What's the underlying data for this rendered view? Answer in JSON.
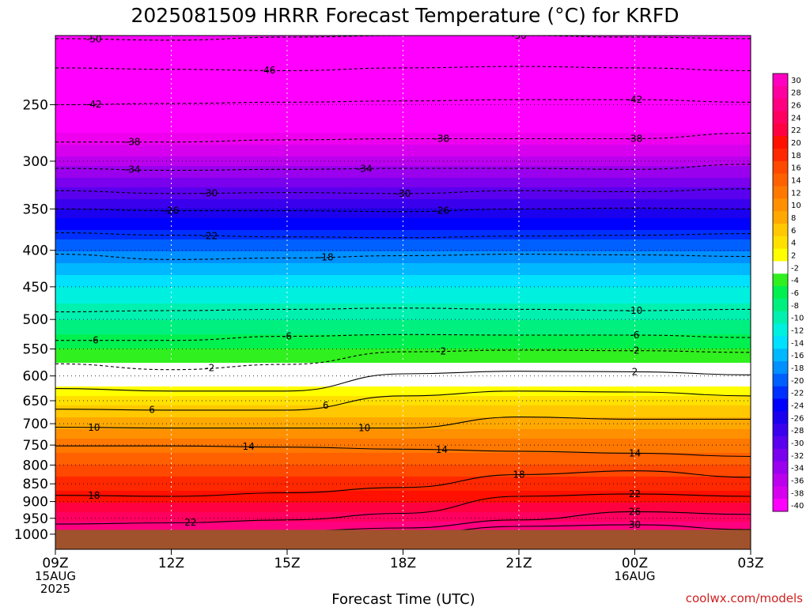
{
  "chart_data": {
    "type": "heatmap",
    "title": "2025081509 HRRR Forecast Temperature (°C) for KRFD",
    "xlabel": "Forecast Time (UTC)",
    "ylabel": "",
    "credit": "coolwx.com/models",
    "x_ticks": [
      {
        "hour": 0,
        "label": "09Z",
        "sub1": "15AUG",
        "sub2": "2025"
      },
      {
        "hour": 3,
        "label": "12Z",
        "sub1": "",
        "sub2": ""
      },
      {
        "hour": 6,
        "label": "15Z",
        "sub1": "",
        "sub2": ""
      },
      {
        "hour": 9,
        "label": "18Z",
        "sub1": "",
        "sub2": ""
      },
      {
        "hour": 12,
        "label": "21Z",
        "sub1": "",
        "sub2": ""
      },
      {
        "hour": 15,
        "label": "00Z",
        "sub1": "16AUG",
        "sub2": ""
      },
      {
        "hour": 18,
        "label": "03Z",
        "sub1": "",
        "sub2": ""
      }
    ],
    "y_ticks": [
      {
        "p": 250,
        "label": "250"
      },
      {
        "p": 300,
        "label": "300"
      },
      {
        "p": 350,
        "label": "350"
      },
      {
        "p": 400,
        "label": "400"
      },
      {
        "p": 450,
        "label": "450"
      },
      {
        "p": 500,
        "label": "500"
      },
      {
        "p": 550,
        "label": "550"
      },
      {
        "p": 600,
        "label": "600"
      },
      {
        "p": 650,
        "label": "650"
      },
      {
        "p": 700,
        "label": "700"
      },
      {
        "p": 750,
        "label": "750"
      },
      {
        "p": 800,
        "label": "800"
      },
      {
        "p": 850,
        "label": "850"
      },
      {
        "p": 900,
        "label": "900"
      },
      {
        "p": 950,
        "label": "950"
      },
      {
        "p": 1000,
        "label": "1000"
      }
    ],
    "x_range_hours": [
      0,
      18
    ],
    "y_range_hpa": [
      200,
      1050
    ],
    "y_scale": "log",
    "ground_pressure_hpa": 986,
    "ground_color": "#a0522d",
    "colorbar": {
      "levels": [
        -40,
        -38,
        -36,
        -34,
        -32,
        -30,
        -28,
        -26,
        -24,
        -22,
        -20,
        -18,
        -16,
        -14,
        -12,
        -10,
        -8,
        -6,
        -4,
        -2,
        2,
        4,
        6,
        8,
        10,
        12,
        14,
        16,
        18,
        20,
        22,
        24,
        26,
        28,
        30
      ],
      "labels": [
        "30",
        "28",
        "26",
        "24",
        "22",
        "20",
        "18",
        "16",
        "14",
        "12",
        "10",
        "8",
        "6",
        "4",
        "2",
        "-2",
        "-4",
        "-6",
        "-8",
        "-10",
        "-12",
        "-14",
        "-16",
        "-18",
        "-20",
        "-22",
        "-24",
        "-26",
        "-28",
        "-30",
        "-32",
        "-34",
        "-36",
        "-38",
        "-40"
      ]
    },
    "profile": [
      {
        "p": 200,
        "t": -55
      },
      {
        "p": 250,
        "t": -45
      },
      {
        "p": 300,
        "t": -35
      },
      {
        "p": 350,
        "t": -26
      },
      {
        "p": 400,
        "t": -18
      },
      {
        "p": 450,
        "t": -12
      },
      {
        "p": 500,
        "t": -8
      },
      {
        "p": 550,
        "t": -4
      },
      {
        "p": 600,
        "t": 0
      },
      {
        "p": 650,
        "t": 5
      },
      {
        "p": 700,
        "t": 9
      },
      {
        "p": 750,
        "t": 13
      },
      {
        "p": 800,
        "t": 16
      },
      {
        "p": 850,
        "t": 19
      },
      {
        "p": 900,
        "t": 22
      },
      {
        "p": 950,
        "t": 25
      },
      {
        "p": 1000,
        "t": 29
      }
    ],
    "contours": [
      {
        "value": -50,
        "label": "-50",
        "style": "dashed",
        "p": [
          202,
          203,
          201,
          200,
          200,
          201,
          202
        ],
        "labels_at": [
          1,
          12
        ]
      },
      {
        "value": -46,
        "label": "-46",
        "style": "dashed",
        "p": [
          222,
          223,
          224,
          222,
          221,
          222,
          224
        ],
        "labels_at": [
          5.5
        ]
      },
      {
        "value": -42,
        "label": "-42",
        "style": "dashed",
        "p": [
          250,
          249,
          248,
          247,
          246,
          246,
          248
        ],
        "labels_at": [
          1,
          15
        ]
      },
      {
        "value": -38,
        "label": "-38",
        "style": "dashed",
        "p": [
          282,
          282,
          280,
          279,
          279,
          279,
          274
        ],
        "labels_at": [
          2,
          10,
          15
        ]
      },
      {
        "value": -34,
        "label": "-34",
        "style": "dashed",
        "p": [
          307,
          309,
          308,
          307,
          307,
          308,
          303
        ],
        "labels_at": [
          2,
          8
        ]
      },
      {
        "value": -30,
        "label": "-30",
        "style": "dashed",
        "p": [
          330,
          333,
          332,
          333,
          330,
          331,
          328
        ],
        "labels_at": [
          4,
          9
        ]
      },
      {
        "value": -26,
        "label": "-26",
        "style": "dashed",
        "p": [
          350,
          352,
          352,
          353,
          350,
          349,
          350
        ],
        "labels_at": [
          3,
          10
        ]
      },
      {
        "value": -22,
        "label": "-22",
        "style": "dashed",
        "p": [
          378,
          381,
          383,
          384,
          382,
          381,
          379
        ],
        "labels_at": [
          4
        ]
      },
      {
        "value": -18,
        "label": "-18",
        "style": "dashed",
        "p": [
          405,
          412,
          410,
          407,
          405,
          406,
          408
        ],
        "labels_at": [
          7
        ]
      },
      {
        "value": -10,
        "label": "-10",
        "style": "dashed",
        "p": [
          488,
          486,
          484,
          482,
          484,
          486,
          484
        ],
        "labels_at": [
          15
        ]
      },
      {
        "value": -6,
        "label": "-6",
        "style": "dashed",
        "p": [
          535,
          535,
          528,
          525,
          526,
          526,
          530
        ],
        "labels_at": [
          1,
          6,
          15
        ]
      },
      {
        "value": -2,
        "label": "-2",
        "style": "dashed",
        "p": [
          577,
          588,
          578,
          555,
          552,
          553,
          556
        ],
        "labels_at": [
          4,
          10,
          15
        ]
      },
      {
        "value": 2,
        "label": "2",
        "style": "solid-dark",
        "p": [
          625,
          630,
          630,
          596,
          591,
          592,
          598
        ],
        "labels_at": [
          15
        ]
      },
      {
        "value": 6,
        "label": "6",
        "style": "solid-dark",
        "p": [
          668,
          670,
          670,
          640,
          630,
          632,
          640
        ],
        "labels_at": [
          2.5,
          7
        ]
      },
      {
        "value": 10,
        "label": "10",
        "style": "solid-dark",
        "p": [
          708,
          710,
          710,
          710,
          685,
          690,
          690
        ],
        "labels_at": [
          1,
          8
        ]
      },
      {
        "value": 14,
        "label": "14",
        "style": "solid-dark",
        "p": [
          752,
          752,
          755,
          760,
          765,
          770,
          778
        ],
        "labels_at": [
          5,
          10,
          15
        ]
      },
      {
        "value": 18,
        "label": "18",
        "style": "solid-dark",
        "p": [
          882,
          885,
          875,
          860,
          825,
          815,
          832
        ],
        "labels_at": [
          1,
          12
        ]
      },
      {
        "value": 22,
        "label": "22",
        "style": "solid-dark",
        "p": [
          968,
          964,
          955,
          935,
          885,
          878,
          885
        ],
        "labels_at": [
          3.5,
          15
        ]
      },
      {
        "value": 26,
        "label": "26",
        "style": "solid-dark",
        "p": [
          990,
          990,
          990,
          980,
          955,
          930,
          938
        ],
        "labels_at": [
          15
        ]
      },
      {
        "value": 30,
        "label": "30",
        "style": "solid-dark",
        "p": [
          1010,
          1010,
          1010,
          1000,
          975,
          970,
          985
        ],
        "labels_at": [
          15
        ]
      }
    ]
  }
}
